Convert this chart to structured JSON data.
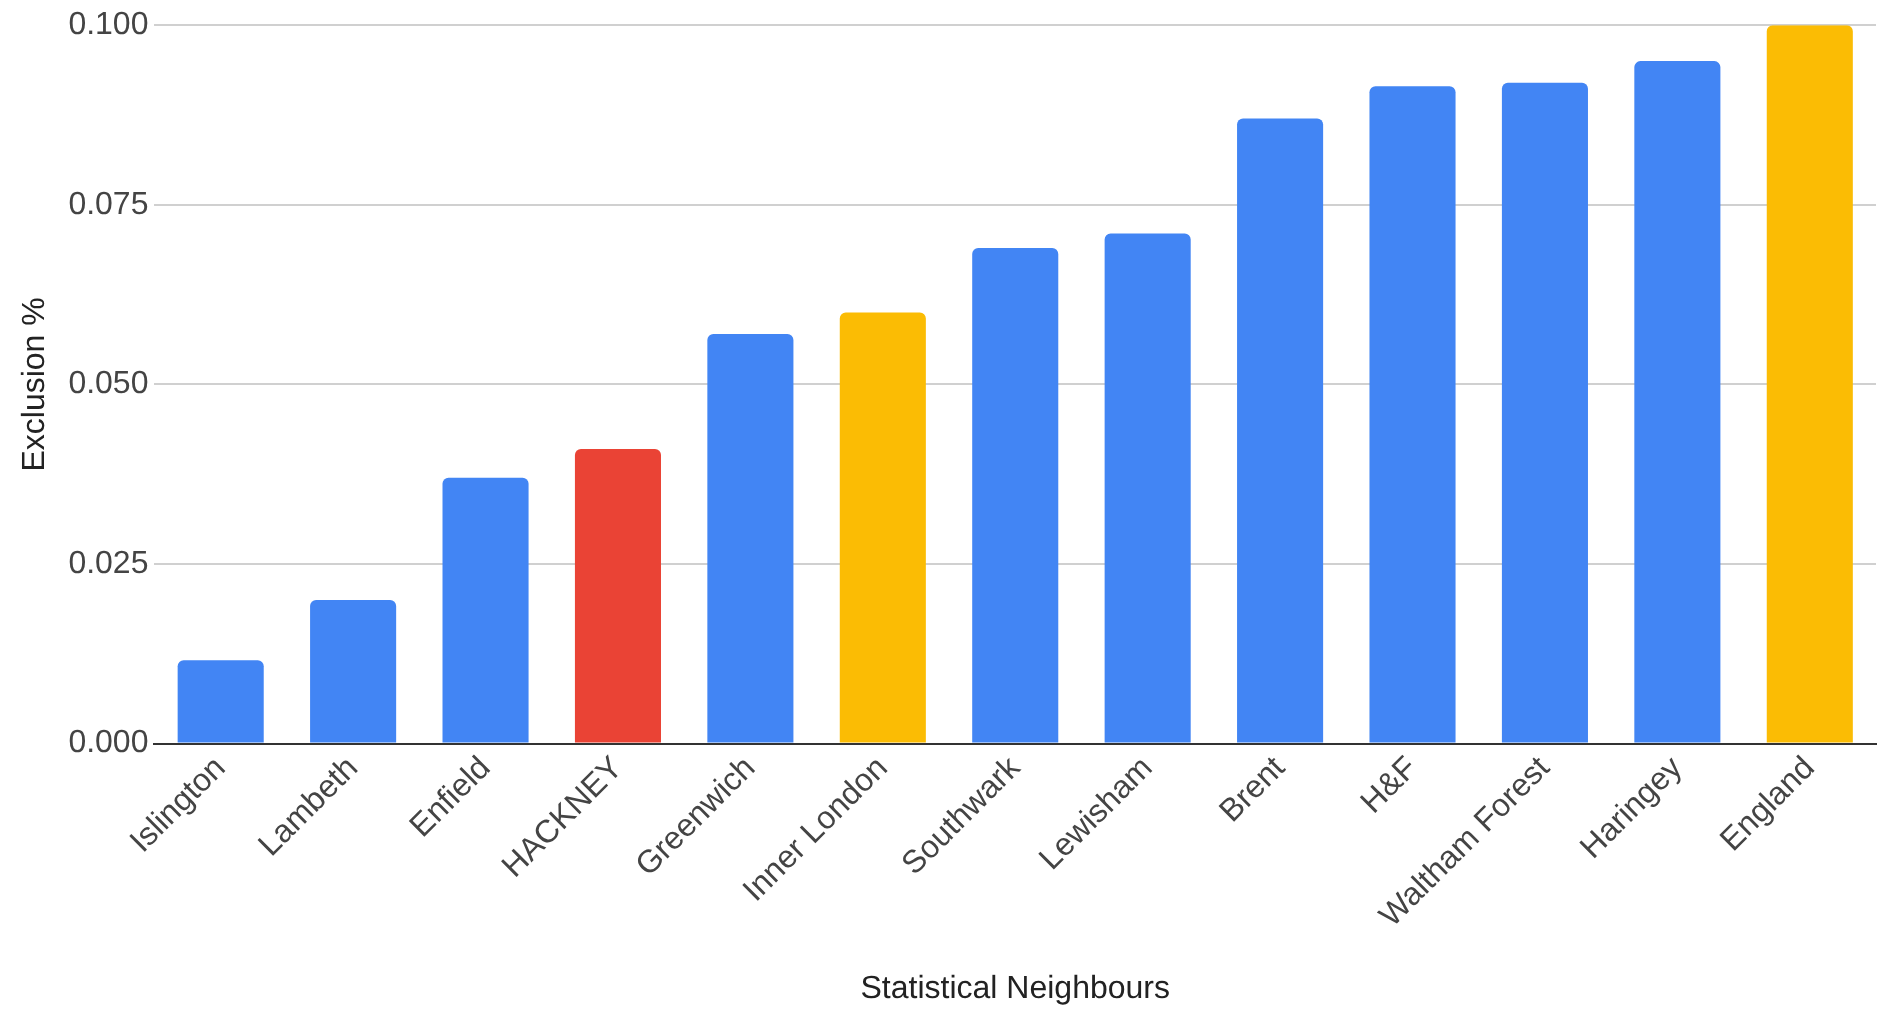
{
  "chart_data": {
    "type": "bar",
    "xlabel": "Statistical Neighbours",
    "ylabel": "Exclusion %",
    "categories": [
      "Islington",
      "Lambeth",
      "Enfield",
      "HACKNEY",
      "Greenwich",
      "Inner London",
      "Southwark",
      "Lewisham",
      "Brent",
      "H&F",
      "Waltham Forest",
      "Haringey",
      "England"
    ],
    "values": [
      0.0116,
      0.02,
      0.037,
      0.041,
      0.057,
      0.06,
      0.069,
      0.071,
      0.087,
      0.0915,
      0.092,
      0.095,
      0.1
    ],
    "colors": [
      "#4285f4",
      "#4285f4",
      "#4285f4",
      "#ea4335",
      "#4285f4",
      "#fbbc04",
      "#4285f4",
      "#4285f4",
      "#4285f4",
      "#4285f4",
      "#4285f4",
      "#4285f4",
      "#fbbc04"
    ],
    "ylim": [
      0,
      0.1
    ],
    "yticks": [
      {
        "value": 0,
        "label": "0.000"
      },
      {
        "value": 0.025,
        "label": "0.025"
      },
      {
        "value": 0.05,
        "label": "0.050"
      },
      {
        "value": 0.075,
        "label": "0.075"
      },
      {
        "value": 0.1,
        "label": "0.100"
      }
    ],
    "grid": "y",
    "legend": false
  }
}
